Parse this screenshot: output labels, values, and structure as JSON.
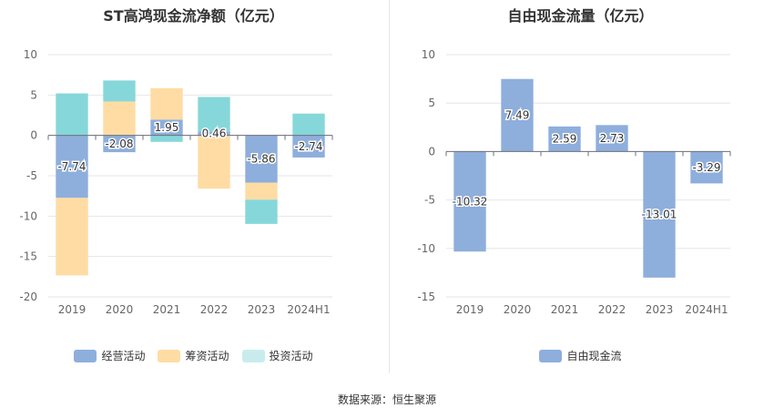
{
  "source_text": "数据来源：恒生聚源",
  "chart_data": [
    {
      "type": "bar",
      "stacked": true,
      "title": "ST高鸿现金流净额（亿元）",
      "categories": [
        "2019",
        "2020",
        "2021",
        "2022",
        "2023",
        "2024H1"
      ],
      "ylim": [
        -20,
        10
      ],
      "yticks": [
        10,
        5,
        0,
        -5,
        -10,
        -15,
        -20
      ],
      "grid": true,
      "legend_position": "bottom",
      "series": [
        {
          "name": "经营活动",
          "color": "#8eaedc",
          "values": [
            -7.74,
            -2.08,
            1.95,
            0.46,
            -5.86,
            -2.74
          ]
        },
        {
          "name": "筹资活动",
          "color": "#fedca4",
          "values": [
            -9.6,
            4.2,
            3.9,
            -6.6,
            -2.1,
            0.0
          ]
        },
        {
          "name": "投资活动",
          "color": "#c8ecee",
          "bar_color": "#86d7d9",
          "values": [
            5.2,
            2.6,
            -0.8,
            4.3,
            -3.0,
            2.7
          ]
        }
      ],
      "data_labels": [
        "-7.74",
        "-2.08",
        "1.95",
        "0.46",
        "-5.86",
        "-2.74"
      ]
    },
    {
      "type": "bar",
      "title": "自由现金流量（亿元）",
      "categories": [
        "2019",
        "2020",
        "2021",
        "2022",
        "2023",
        "2024H1"
      ],
      "ylim": [
        -15,
        10
      ],
      "yticks": [
        10,
        5,
        0,
        -5,
        -10,
        -15
      ],
      "grid": true,
      "legend_position": "bottom",
      "series": [
        {
          "name": "自由现金流",
          "color": "#8eaedc",
          "values": [
            -10.32,
            7.49,
            2.59,
            2.73,
            -13.01,
            -3.29
          ]
        }
      ],
      "data_labels": [
        "-10.32",
        "7.49",
        "2.59",
        "2.73",
        "-13.01",
        "-3.29"
      ]
    }
  ]
}
